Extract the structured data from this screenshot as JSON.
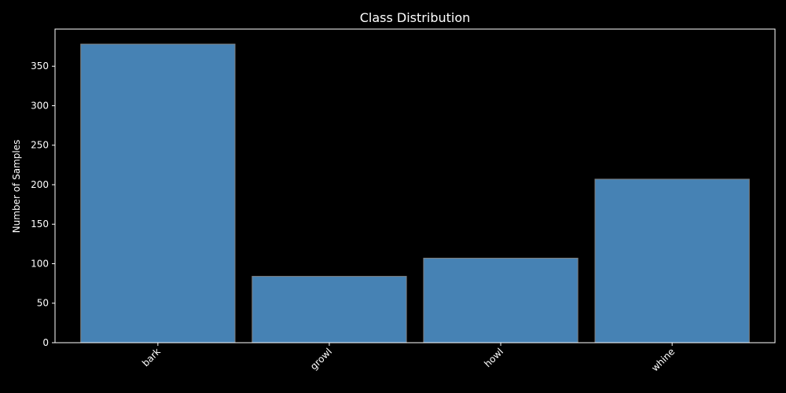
{
  "chart_data": {
    "type": "bar",
    "title": "Class Distribution",
    "xlabel": "",
    "ylabel": "Number of Samples",
    "categories": [
      "bark",
      "growl",
      "howl",
      "whine"
    ],
    "values": [
      378,
      84,
      107,
      207
    ],
    "ylim": [
      0,
      397
    ],
    "yticks": [
      0,
      50,
      100,
      150,
      200,
      250,
      300,
      350
    ],
    "grid": false,
    "legend": "none",
    "colors": {
      "background": "#000000",
      "bar_fill": "#4682b4",
      "bar_edge": "#808080",
      "axis": "#ffffff",
      "text": "#ffffff"
    }
  }
}
